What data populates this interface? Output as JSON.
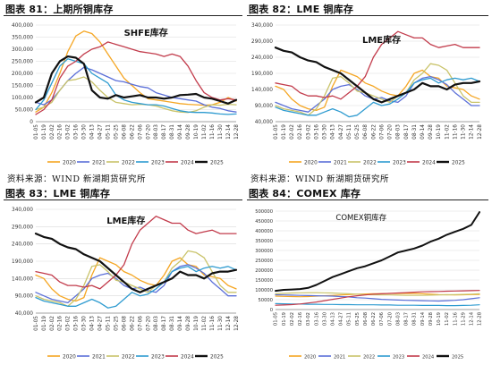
{
  "panels": [
    {
      "title": "图表 81：上期所铜库存",
      "source": "资料来源：WIND 新湖期货研究所"
    },
    {
      "title": "图表 82：LME 铜库存",
      "source": ""
    },
    {
      "title": "图表 83：LME 铜库存",
      "source": "资料来源：WIND 新湖期货研究所"
    },
    {
      "title": "图表 84：COMEX 库存",
      "source": ""
    }
  ],
  "colors": {
    "2020": "#f5a623",
    "2021": "#5b6fd8",
    "2022": "#c9c36a",
    "2023": "#2e9bd0",
    "2024": "#c23b4b",
    "2025": "#111111"
  },
  "chart_data": [
    {
      "type": "line",
      "title": "SHFE库存",
      "x": [
        "01-05",
        "01-19",
        "02-02",
        "02-16",
        "03-02",
        "03-16",
        "03-30",
        "04-13",
        "04-27",
        "05-11",
        "05-25",
        "06-08",
        "06-22",
        "07-06",
        "07-20",
        "08-03",
        "08-17",
        "08-31",
        "09-14",
        "09-28",
        "10-12",
        "10-26",
        "11-09",
        "11-23",
        "12-07",
        "12-21"
      ],
      "xticks": [
        "01-05",
        "01-19",
        "02-02",
        "02-16",
        "03-02",
        "03-16",
        "03-30",
        "04-13",
        "04-27",
        "05-11",
        "05-25",
        "06-08",
        "06-22",
        "07-06",
        "07-20",
        "08-03",
        "08-17",
        "08-31",
        "09-14",
        "09-28",
        "10-19",
        "11-02",
        "11-16",
        "11-30",
        "12-14",
        "12-28"
      ],
      "ylim": [
        0,
        400000
      ],
      "yticks": [
        "0",
        "50,000",
        "100,000",
        "150,000",
        "200,000",
        "250,000",
        "300,000",
        "350,000",
        "400,000"
      ],
      "series": [
        {
          "name": "2020",
          "values": [
            40000,
            60000,
            120000,
            200000,
            290000,
            355000,
            375000,
            365000,
            330000,
            280000,
            230000,
            180000,
            150000,
            120000,
            95000,
            90000,
            85000,
            80000,
            75000,
            72000,
            70000,
            68000,
            70000,
            80000,
            100000,
            85000
          ]
        },
        {
          "name": "2021",
          "values": [
            80000,
            70000,
            90000,
            130000,
            170000,
            200000,
            225000,
            215000,
            200000,
            185000,
            170000,
            165000,
            155000,
            145000,
            140000,
            120000,
            110000,
            100000,
            95000,
            90000,
            85000,
            70000,
            60000,
            55000,
            45000,
            40000
          ]
        },
        {
          "name": "2022",
          "values": [
            50000,
            60000,
            80000,
            130000,
            170000,
            175000,
            185000,
            165000,
            130000,
            100000,
            80000,
            75000,
            70000,
            72000,
            70000,
            65000,
            55000,
            45000,
            40000,
            38000,
            45000,
            60000,
            70000,
            68000,
            72000,
            70000
          ]
        },
        {
          "name": "2023",
          "values": [
            50000,
            90000,
            160000,
            230000,
            260000,
            250000,
            240000,
            200000,
            180000,
            160000,
            110000,
            90000,
            80000,
            75000,
            70000,
            70000,
            65000,
            55000,
            45000,
            40000,
            38000,
            38000,
            36000,
            32000,
            30000,
            32000
          ]
        },
        {
          "name": "2024",
          "values": [
            30000,
            50000,
            90000,
            180000,
            230000,
            250000,
            280000,
            300000,
            310000,
            330000,
            320000,
            310000,
            300000,
            290000,
            285000,
            280000,
            270000,
            280000,
            270000,
            230000,
            170000,
            120000,
            100000,
            90000,
            95000,
            90000
          ]
        },
        {
          "name": "2025",
          "values": [
            80000,
            100000,
            200000,
            250000,
            270000,
            265000,
            240000,
            130000,
            100000,
            95000,
            110000,
            100000,
            105000,
            110000,
            100000,
            100000,
            95000,
            100000,
            110000,
            112000,
            115000,
            100000,
            95000,
            85000,
            75000,
            90000
          ]
        }
      ]
    },
    {
      "type": "line",
      "title": "LME库存",
      "x": [
        "01-05",
        "01-19",
        "02-02",
        "02-16",
        "03-02",
        "03-16",
        "03-30",
        "04-13",
        "04-27",
        "05-11",
        "05-25",
        "06-08",
        "06-22",
        "07-06",
        "07-20",
        "08-03",
        "08-17",
        "08-31",
        "09-14",
        "09-28",
        "10-12",
        "10-26",
        "11-09",
        "11-23",
        "12-07",
        "12-21"
      ],
      "xticks": [
        "01-05",
        "01-19",
        "02-02",
        "02-16",
        "03-02",
        "03-16",
        "03-30",
        "04-13",
        "04-27",
        "05-11",
        "05-25",
        "06-08",
        "06-22",
        "07-06",
        "07-20",
        "08-03",
        "08-17",
        "08-31",
        "09-14",
        "09-28",
        "10-19",
        "11-02",
        "11-16",
        "11-30",
        "12-14",
        "12-28"
      ],
      "ylim": [
        40000,
        340000
      ],
      "yticks": [
        "40,000",
        "90,000",
        "140,000",
        "190,000",
        "240,000",
        "290,000",
        "340,000"
      ],
      "series": [
        {
          "name": "2020",
          "values": [
            150000,
            140000,
            110000,
            90000,
            80000,
            75000,
            85000,
            150000,
            200000,
            190000,
            180000,
            160000,
            150000,
            135000,
            125000,
            120000,
            150000,
            190000,
            200000,
            180000,
            175000,
            150000,
            145000,
            140000,
            120000,
            110000
          ]
        },
        {
          "name": "2021",
          "values": [
            100000,
            90000,
            80000,
            75000,
            70000,
            90000,
            110000,
            140000,
            150000,
            155000,
            140000,
            120000,
            110000,
            115000,
            105000,
            100000,
            120000,
            160000,
            175000,
            180000,
            170000,
            155000,
            130000,
            110000,
            90000,
            90000
          ]
        },
        {
          "name": "2022",
          "values": [
            90000,
            80000,
            75000,
            70000,
            60000,
            80000,
            120000,
            175000,
            180000,
            160000,
            135000,
            130000,
            120000,
            110000,
            100000,
            120000,
            130000,
            170000,
            190000,
            220000,
            215000,
            200000,
            160000,
            120000,
            100000,
            100000
          ]
        },
        {
          "name": "2023",
          "values": [
            85000,
            75000,
            70000,
            65000,
            60000,
            60000,
            70000,
            80000,
            70000,
            55000,
            60000,
            80000,
            100000,
            90000,
            95000,
            110000,
            130000,
            160000,
            170000,
            175000,
            160000,
            170000,
            175000,
            170000,
            175000,
            165000
          ]
        },
        {
          "name": "2024",
          "values": [
            160000,
            155000,
            150000,
            130000,
            120000,
            120000,
            115000,
            120000,
            110000,
            130000,
            150000,
            180000,
            240000,
            280000,
            300000,
            320000,
            310000,
            300000,
            300000,
            280000,
            270000,
            275000,
            280000,
            270000,
            270000,
            270000
          ]
        },
        {
          "name": "2025",
          "values": [
            270000,
            260000,
            255000,
            240000,
            230000,
            225000,
            210000,
            200000,
            190000,
            170000,
            150000,
            130000,
            110000,
            100000,
            110000,
            120000,
            130000,
            140000,
            160000,
            150000,
            150000,
            140000,
            155000,
            160000,
            160000,
            165000
          ]
        }
      ]
    },
    {
      "type": "line",
      "title": "LME库存",
      "x": [
        "01-05",
        "01-19",
        "02-02",
        "02-16",
        "03-02",
        "03-16",
        "03-30",
        "04-13",
        "04-27",
        "05-11",
        "05-25",
        "06-08",
        "06-22",
        "07-06",
        "07-20",
        "08-03",
        "08-17",
        "08-31",
        "09-14",
        "09-28",
        "10-12",
        "10-26",
        "11-09",
        "11-23",
        "12-07",
        "12-21"
      ],
      "xticks": [
        "01-05",
        "01-19",
        "02-02",
        "02-16",
        "03-02",
        "03-16",
        "03-30",
        "04-13",
        "04-27",
        "05-11",
        "05-25",
        "06-08",
        "06-22",
        "07-06",
        "07-20",
        "08-03",
        "08-17",
        "08-31",
        "09-14",
        "09-28",
        "10-19",
        "11-02",
        "11-16",
        "11-30",
        "12-14",
        "12-28"
      ],
      "ylim": [
        40000,
        340000
      ],
      "yticks": [
        "40,000",
        "90,000",
        "140,000",
        "190,000",
        "240,000",
        "290,000",
        "340,000"
      ],
      "series": [
        {
          "name": "2020",
          "values": [
            150000,
            140000,
            110000,
            90000,
            80000,
            75000,
            85000,
            150000,
            200000,
            190000,
            180000,
            160000,
            150000,
            135000,
            125000,
            120000,
            150000,
            190000,
            200000,
            180000,
            175000,
            150000,
            145000,
            140000,
            120000,
            110000
          ]
        },
        {
          "name": "2021",
          "values": [
            100000,
            90000,
            80000,
            75000,
            70000,
            90000,
            110000,
            140000,
            150000,
            155000,
            140000,
            120000,
            110000,
            115000,
            105000,
            100000,
            120000,
            160000,
            175000,
            180000,
            170000,
            155000,
            130000,
            110000,
            90000,
            90000
          ]
        },
        {
          "name": "2022",
          "values": [
            90000,
            80000,
            75000,
            70000,
            60000,
            80000,
            120000,
            175000,
            180000,
            160000,
            135000,
            130000,
            120000,
            110000,
            100000,
            120000,
            130000,
            170000,
            190000,
            220000,
            215000,
            200000,
            160000,
            120000,
            100000,
            100000
          ]
        },
        {
          "name": "2023",
          "values": [
            85000,
            75000,
            70000,
            65000,
            60000,
            60000,
            70000,
            80000,
            70000,
            55000,
            60000,
            80000,
            100000,
            90000,
            95000,
            110000,
            130000,
            160000,
            170000,
            175000,
            160000,
            170000,
            175000,
            170000,
            175000,
            165000
          ]
        },
        {
          "name": "2024",
          "values": [
            160000,
            155000,
            150000,
            130000,
            120000,
            120000,
            115000,
            120000,
            110000,
            130000,
            150000,
            180000,
            240000,
            280000,
            300000,
            320000,
            310000,
            300000,
            300000,
            280000,
            270000,
            275000,
            280000,
            270000,
            270000,
            270000
          ]
        },
        {
          "name": "2025",
          "values": [
            270000,
            260000,
            255000,
            240000,
            230000,
            225000,
            210000,
            200000,
            190000,
            170000,
            150000,
            130000,
            110000,
            100000,
            110000,
            120000,
            130000,
            140000,
            160000,
            150000,
            150000,
            140000,
            155000,
            160000,
            160000,
            165000
          ]
        }
      ]
    },
    {
      "type": "line",
      "title": "COMEX铜库存",
      "x": [
        "01-05",
        "01-19",
        "02-02",
        "02-16",
        "03-02",
        "03-16",
        "03-30",
        "04-13",
        "04-27",
        "05-11",
        "05-25",
        "06-08",
        "06-22",
        "07-06",
        "07-20",
        "08-03",
        "08-17",
        "08-31",
        "09-14",
        "09-28",
        "10-12",
        "10-26",
        "11-09",
        "11-23",
        "12-07",
        "12-21"
      ],
      "xticks": [
        "01-05",
        "01-19",
        "02-02",
        "02-16",
        "03-02",
        "03-16",
        "03-30",
        "04-13",
        "04-27",
        "05-11",
        "05-25",
        "06-08",
        "06-22",
        "07-06",
        "07-20",
        "08-03",
        "08-17",
        "08-31",
        "09-14",
        "09-28",
        "10-19",
        "11-02",
        "11-16",
        "11-29",
        "12-14",
        "12-28"
      ],
      "ylim": [
        0,
        500000
      ],
      "yticks": [
        "0",
        "50000",
        "100000",
        "150000",
        "200000",
        "250000",
        "300000",
        "350000",
        "400000",
        "450000",
        "500000"
      ],
      "series": [
        {
          "name": "2020",
          "values": [
            68000,
            67000,
            66000,
            65000,
            66000,
            68000,
            70000,
            72000,
            74000,
            76000,
            78000,
            79000,
            80000,
            81000,
            82000,
            82000,
            82000,
            82000,
            80000,
            78000,
            76000,
            75000,
            74000,
            75000,
            76000,
            77000
          ]
        },
        {
          "name": "2021",
          "values": [
            75000,
            74000,
            73000,
            72000,
            71000,
            70000,
            69000,
            68000,
            66000,
            64000,
            60000,
            58000,
            55000,
            52000,
            50000,
            48000,
            47000,
            46000,
            45000,
            44000,
            43000,
            45000,
            47000,
            50000,
            55000,
            60000
          ]
        },
        {
          "name": "2022",
          "values": [
            80000,
            82000,
            84000,
            85000,
            86000,
            86000,
            85000,
            84000,
            82000,
            80000,
            78000,
            76000,
            75000,
            74000,
            74000,
            73000,
            72000,
            72000,
            72000,
            73000,
            74000,
            75000,
            76000,
            77000,
            78000,
            80000
          ]
        },
        {
          "name": "2023",
          "values": [
            30000,
            29000,
            28000,
            28000,
            27000,
            27000,
            26000,
            26000,
            25000,
            25000,
            24000,
            24000,
            24000,
            23000,
            23000,
            22000,
            22000,
            22000,
            21000,
            21000,
            21000,
            20000,
            20000,
            21000,
            22000,
            24000
          ]
        },
        {
          "name": "2024",
          "values": [
            22000,
            23000,
            25000,
            28000,
            33000,
            38000,
            45000,
            52000,
            58000,
            65000,
            70000,
            74000,
            78000,
            80000,
            82000,
            84000,
            86000,
            88000,
            90000,
            91000,
            92000,
            93000,
            94000,
            95000,
            96000,
            97000
          ]
        },
        {
          "name": "2025",
          "values": [
            95000,
            100000,
            102000,
            104000,
            110000,
            125000,
            145000,
            165000,
            180000,
            195000,
            210000,
            220000,
            235000,
            250000,
            270000,
            290000,
            300000,
            310000,
            325000,
            345000,
            360000,
            380000,
            395000,
            410000,
            430000,
            495000
          ]
        }
      ]
    }
  ]
}
